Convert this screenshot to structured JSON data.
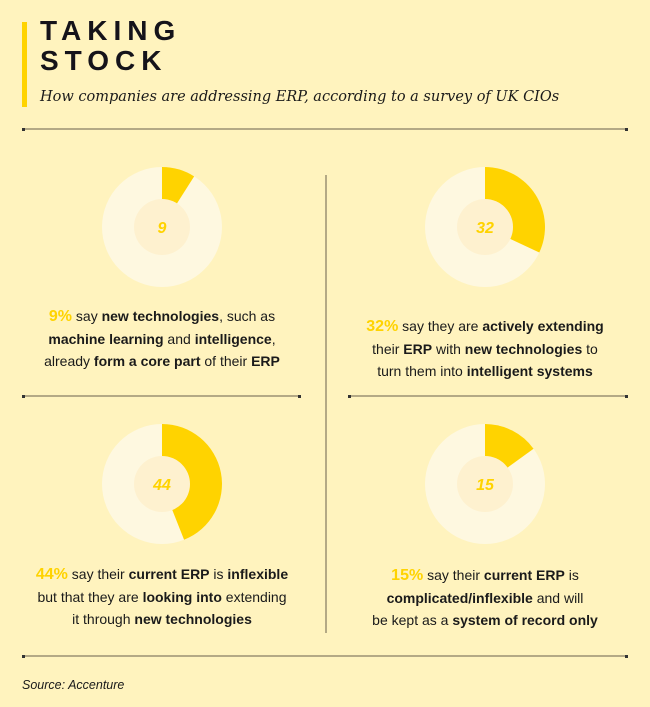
{
  "header": {
    "title_line1": "TAKING",
    "title_line2": "STOCK",
    "subtitle": "How companies are addressing ERP, according to a survey of UK CIOs"
  },
  "colors": {
    "background": "#FFF3BE",
    "accent": "#FFD300",
    "ring": "#FEF8E0",
    "center": "#FEF1CF"
  },
  "chart_data": [
    {
      "type": "pie",
      "variant": "donut",
      "value": 9,
      "total": 100,
      "label": "9"
    },
    {
      "type": "pie",
      "variant": "donut",
      "value": 32,
      "total": 100,
      "label": "32"
    },
    {
      "type": "pie",
      "variant": "donut",
      "value": 44,
      "total": 100,
      "label": "44"
    },
    {
      "type": "pie",
      "variant": "donut",
      "value": 15,
      "total": 100,
      "label": "15"
    }
  ],
  "stats": [
    {
      "lines": [
        [
          {
            "t": "9%",
            "s": "pct"
          },
          {
            "t": " say ",
            "s": ""
          },
          {
            "t": "new technologies",
            "s": "b"
          },
          {
            "t": ", such as",
            "s": ""
          }
        ],
        [
          {
            "t": "machine learning",
            "s": "b"
          },
          {
            "t": " and ",
            "s": ""
          },
          {
            "t": "intelligence",
            "s": "b"
          },
          {
            "t": ",",
            "s": ""
          }
        ],
        [
          {
            "t": "already ",
            "s": ""
          },
          {
            "t": "form a core part",
            "s": "b"
          },
          {
            "t": " of their ",
            "s": ""
          },
          {
            "t": "ERP",
            "s": "b"
          }
        ]
      ]
    },
    {
      "lines": [
        [
          {
            "t": "32%",
            "s": "pct"
          },
          {
            "t": " say they are ",
            "s": ""
          },
          {
            "t": "actively extending",
            "s": "b"
          }
        ],
        [
          {
            "t": "their ",
            "s": ""
          },
          {
            "t": "ERP",
            "s": "b"
          },
          {
            "t": " with ",
            "s": ""
          },
          {
            "t": "new technologies",
            "s": "b"
          },
          {
            "t": " to",
            "s": ""
          }
        ],
        [
          {
            "t": "turn them into ",
            "s": ""
          },
          {
            "t": "intelligent systems",
            "s": "b"
          }
        ]
      ]
    },
    {
      "lines": [
        [
          {
            "t": "44%",
            "s": "pct"
          },
          {
            "t": " say their ",
            "s": ""
          },
          {
            "t": "current ERP",
            "s": "b"
          },
          {
            "t": " is ",
            "s": ""
          },
          {
            "t": "inflexible",
            "s": "b"
          }
        ],
        [
          {
            "t": "but that they are ",
            "s": ""
          },
          {
            "t": "looking into",
            "s": "b"
          },
          {
            "t": " extending",
            "s": ""
          }
        ],
        [
          {
            "t": "it through ",
            "s": ""
          },
          {
            "t": "new technologies",
            "s": "b"
          }
        ]
      ]
    },
    {
      "lines": [
        [
          {
            "t": "15%",
            "s": "pct"
          },
          {
            "t": " say their ",
            "s": ""
          },
          {
            "t": "current ERP",
            "s": "b"
          },
          {
            "t": " is",
            "s": ""
          }
        ],
        [
          {
            "t": "complicated/inflexible",
            "s": "b"
          },
          {
            "t": " and will",
            "s": ""
          }
        ],
        [
          {
            "t": "be kept as a ",
            "s": ""
          },
          {
            "t": "system of record only",
            "s": "b"
          }
        ]
      ]
    }
  ],
  "footer": {
    "source": "Source: Accenture"
  }
}
